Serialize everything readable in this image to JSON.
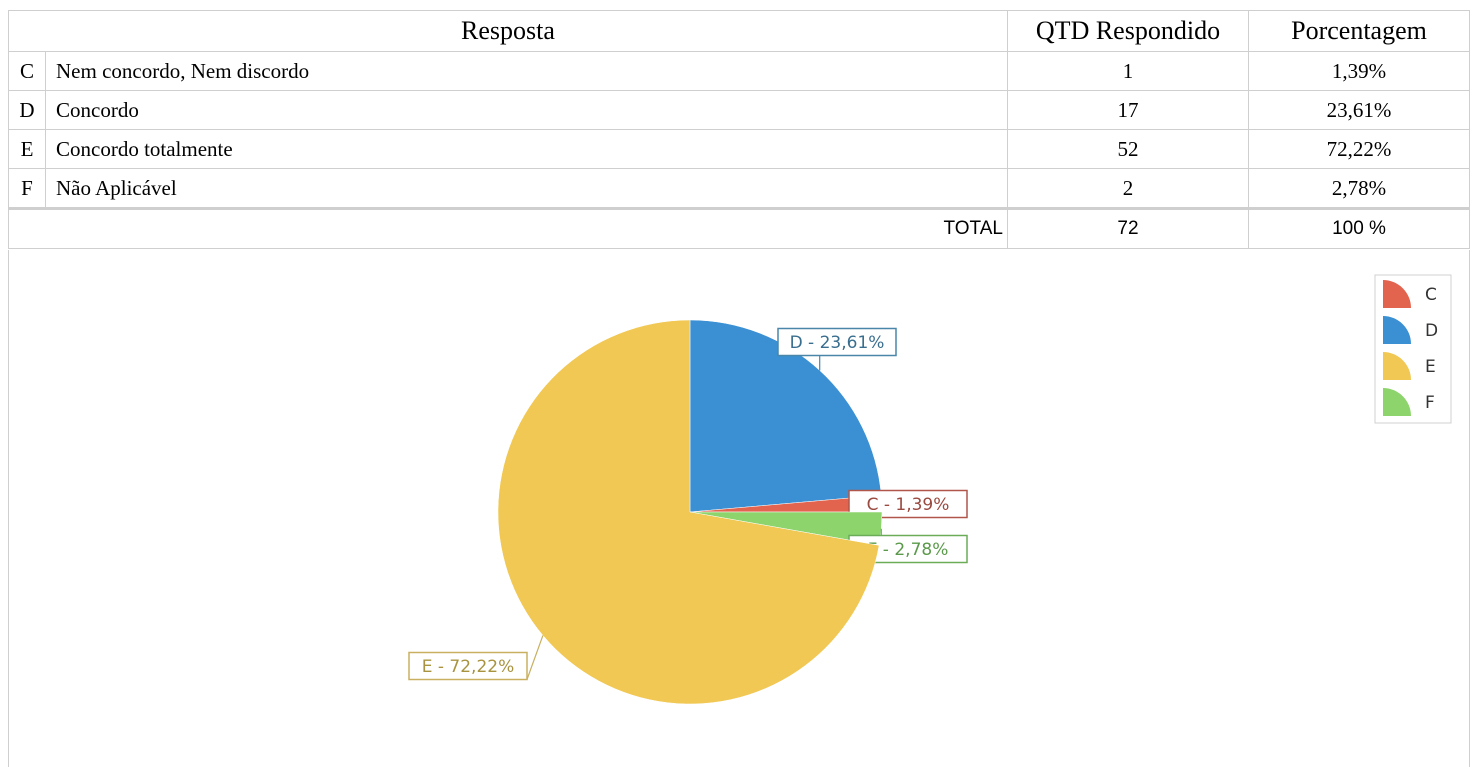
{
  "table": {
    "header": [
      "Resposta",
      "QTD Respondido",
      "Porcentagem"
    ],
    "rows": [
      {
        "letter": "C",
        "text": "Nem concordo, Nem discordo",
        "count": 1,
        "percent": "1,39%"
      },
      {
        "letter": "D",
        "text": "Concordo",
        "count": 17,
        "percent": "23,61%"
      },
      {
        "letter": "E",
        "text": "Concordo totalmente",
        "count": 52,
        "percent": "72,22%"
      },
      {
        "letter": "F",
        "text": "Não Aplicável",
        "count": 2,
        "percent": "2,78%"
      }
    ],
    "total": {
      "label": "TOTAL",
      "count": 72,
      "percent": "100 %"
    }
  },
  "chart_data": {
    "type": "pie",
    "categories": [
      "C",
      "D",
      "E",
      "F"
    ],
    "values": [
      1.39,
      23.61,
      72.22,
      2.78
    ],
    "value_labels": [
      "C - 1,39%",
      "D - 23,61%",
      "E - 72,22%",
      "F - 2,78%"
    ],
    "colors": [
      "#e2644e",
      "#3a90d2",
      "#f0c853",
      "#8dd46c"
    ],
    "legend": "top-right"
  }
}
